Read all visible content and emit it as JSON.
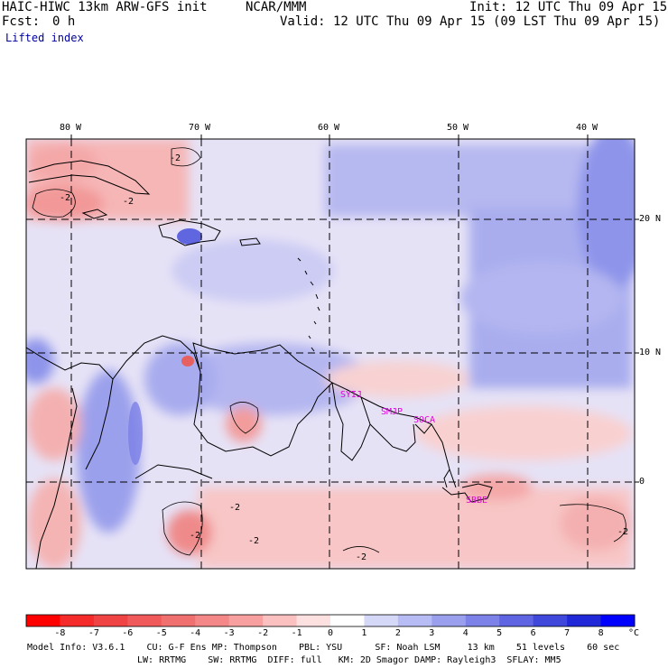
{
  "header": {
    "title_left": "HAIC-HIWC 13km ARW-GFS init",
    "title_mid": "NCAR/MMM",
    "init": "Init: 12 UTC Thu 09 Apr 15",
    "fcst_label": "Fcst:",
    "fcst_value": "0 h",
    "valid": "Valid: 12 UTC Thu 09 Apr 15 (09 LST Thu 09 Apr 15)",
    "field": "Lifted index"
  },
  "axes": {
    "lon_labels": [
      "80 W",
      "70 W",
      "60 W",
      "50 W",
      "40 W"
    ],
    "lat_labels": [
      "20 N",
      "10 N",
      "0"
    ]
  },
  "stations": [
    "SYIJ",
    "SMJP",
    "SOCA",
    "SBBE"
  ],
  "contour_labels": [
    "-2",
    "-2",
    "-2",
    "-2",
    "-2",
    "-2",
    "-2",
    "-2"
  ],
  "colorbar": {
    "unit": "°C",
    "ticks": [
      "-8",
      "-7",
      "-6",
      "-5",
      "-4",
      "-3",
      "-2",
      "-1",
      "0",
      "1",
      "2",
      "3",
      "4",
      "5",
      "6",
      "7",
      "8"
    ],
    "colors": [
      "#ff0000",
      "#f52a2a",
      "#f04444",
      "#f05a5a",
      "#f07070",
      "#f48888",
      "#f8a0a0",
      "#fbc0c0",
      "#fde0e0",
      "#ffffff",
      "#d6d8f8",
      "#b8bcf4",
      "#9aa0ee",
      "#7c82e8",
      "#5e64e2",
      "#4048dc",
      "#2028d8",
      "#0000ff"
    ]
  },
  "footer": {
    "line1": "Model Info: V3.6.1    CU: G-F Ens MP: Thompson    PBL: YSU      SF: Noah LSM     13 km    51 levels    60 sec",
    "line2": "LW: RRTMG    SW: RRTMG  DIFF: full   KM: 2D Smagor DAMP: Rayleigh3  SFLAY: MM5"
  }
}
